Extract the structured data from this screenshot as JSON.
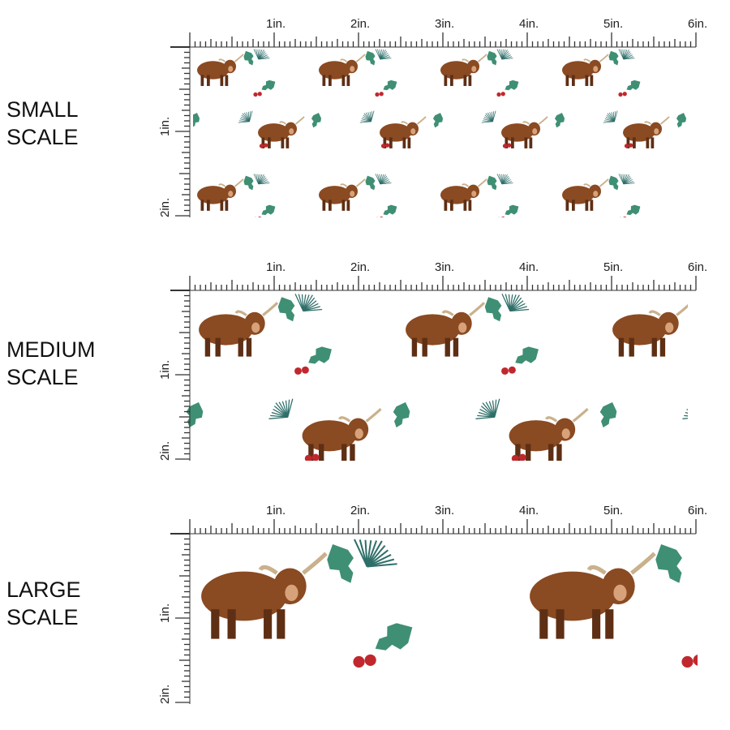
{
  "panels": [
    {
      "label_line1": "SMALL",
      "label_line2": "SCALE",
      "scale": 1
    },
    {
      "label_line1": "MEDIUM",
      "label_line2": "SCALE",
      "scale": 1.7
    },
    {
      "label_line1": "LARGE",
      "label_line2": "SCALE",
      "scale": 2.7
    }
  ],
  "ruler": {
    "horizontal_labels": [
      "1in.",
      "2in.",
      "3in.",
      "4in.",
      "5in.",
      "6in."
    ],
    "vertical_labels": [
      "1in.",
      "2in."
    ]
  },
  "colors": {
    "cow": "#8a4a22",
    "cow_dark": "#5e2f14",
    "holly": "#3f8f74",
    "pine": "#2f6f6a",
    "berry": "#c0282e",
    "ruler": "#333333"
  }
}
